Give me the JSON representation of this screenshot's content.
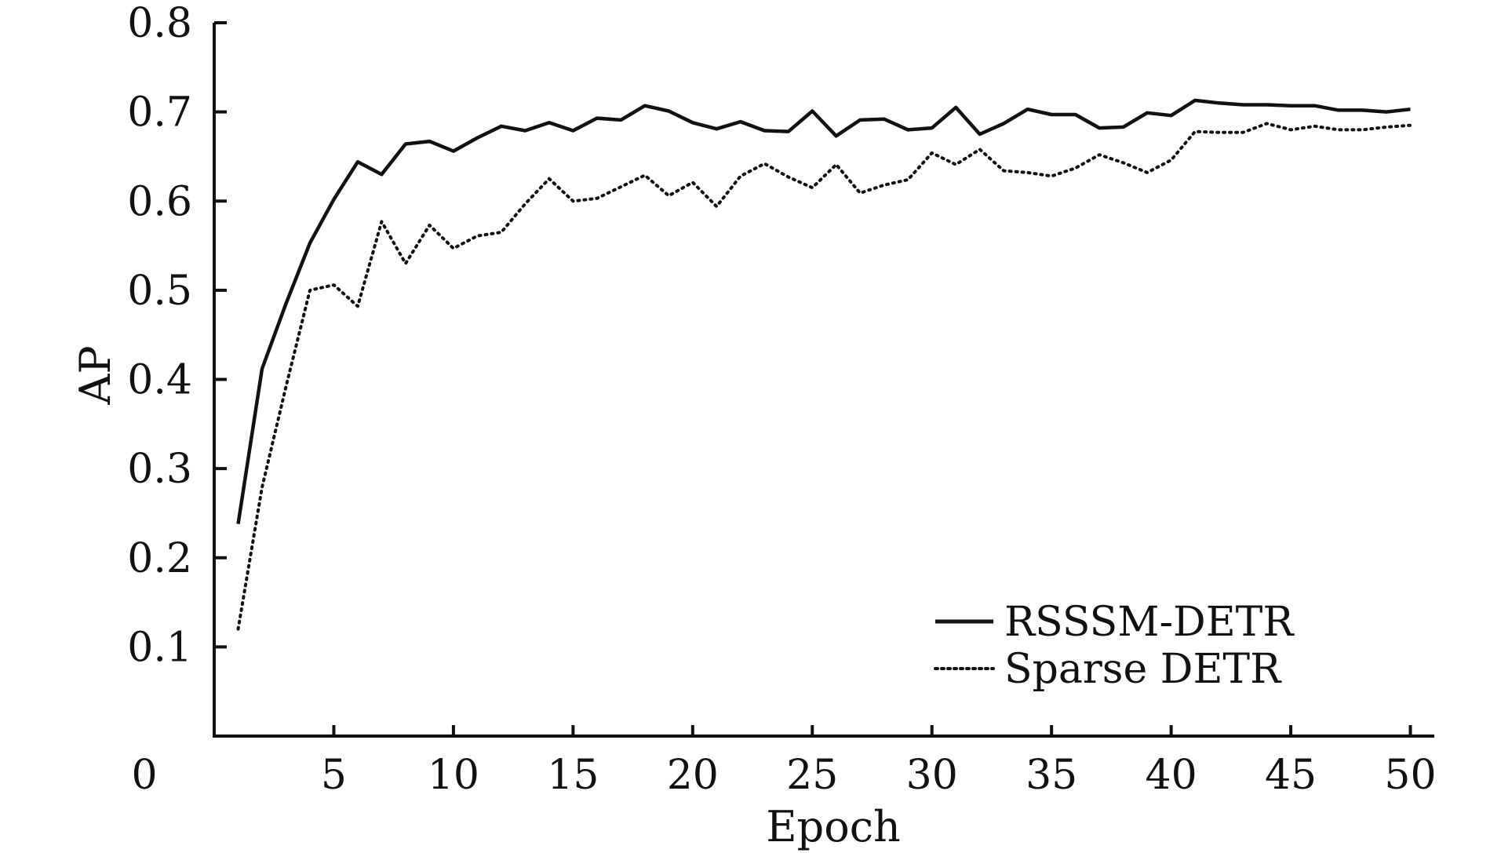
{
  "chart_data": {
    "type": "line",
    "xlabel": "Epoch",
    "ylabel": "AP",
    "xlim": [
      0,
      51
    ],
    "ylim": [
      0,
      0.8
    ],
    "x_ticks": [
      5,
      10,
      15,
      20,
      25,
      30,
      35,
      40,
      45,
      50
    ],
    "x_tick_labels": [
      "5",
      "10",
      "15",
      "20",
      "25",
      "30",
      "35",
      "40",
      "45",
      "50"
    ],
    "y_ticks": [
      0.1,
      0.2,
      0.3,
      0.4,
      0.5,
      0.6,
      0.7,
      0.8
    ],
    "y_tick_labels": [
      "0.1",
      "0.2",
      "0.3",
      "0.4",
      "0.5",
      "0.6",
      "0.7",
      "0.8"
    ],
    "origin_label": "0",
    "grid": false,
    "legend_position": "bottom-right",
    "x": [
      1,
      2,
      3,
      4,
      5,
      6,
      7,
      8,
      9,
      10,
      11,
      12,
      13,
      14,
      15,
      16,
      17,
      18,
      19,
      20,
      21,
      22,
      23,
      24,
      25,
      26,
      27,
      28,
      29,
      30,
      31,
      32,
      33,
      34,
      35,
      36,
      37,
      38,
      39,
      40,
      41,
      42,
      43,
      44,
      45,
      46,
      47,
      48,
      49,
      50
    ],
    "series": [
      {
        "name": "RSSSM-DETR",
        "style": "solid",
        "color": "#111111",
        "values": [
          0.238,
          0.412,
          0.485,
          0.553,
          0.602,
          0.644,
          0.63,
          0.664,
          0.667,
          0.656,
          0.671,
          0.684,
          0.679,
          0.688,
          0.679,
          0.693,
          0.691,
          0.707,
          0.701,
          0.688,
          0.681,
          0.689,
          0.679,
          0.678,
          0.701,
          0.673,
          0.691,
          0.692,
          0.68,
          0.682,
          0.705,
          0.675,
          0.687,
          0.703,
          0.697,
          0.697,
          0.682,
          0.683,
          0.699,
          0.696,
          0.713,
          0.71,
          0.708,
          0.708,
          0.707,
          0.707,
          0.702,
          0.702,
          0.7,
          0.703
        ]
      },
      {
        "name": "Sparse DETR",
        "style": "dotted",
        "color": "#111111",
        "values": [
          0.12,
          0.279,
          0.392,
          0.5,
          0.506,
          0.482,
          0.577,
          0.53,
          0.573,
          0.547,
          0.561,
          0.565,
          0.597,
          0.625,
          0.6,
          0.603,
          0.616,
          0.629,
          0.606,
          0.621,
          0.594,
          0.628,
          0.642,
          0.627,
          0.615,
          0.641,
          0.609,
          0.618,
          0.624,
          0.654,
          0.641,
          0.658,
          0.634,
          0.632,
          0.628,
          0.637,
          0.652,
          0.643,
          0.632,
          0.646,
          0.678,
          0.677,
          0.677,
          0.687,
          0.68,
          0.684,
          0.68,
          0.68,
          0.683,
          0.685
        ]
      }
    ]
  }
}
